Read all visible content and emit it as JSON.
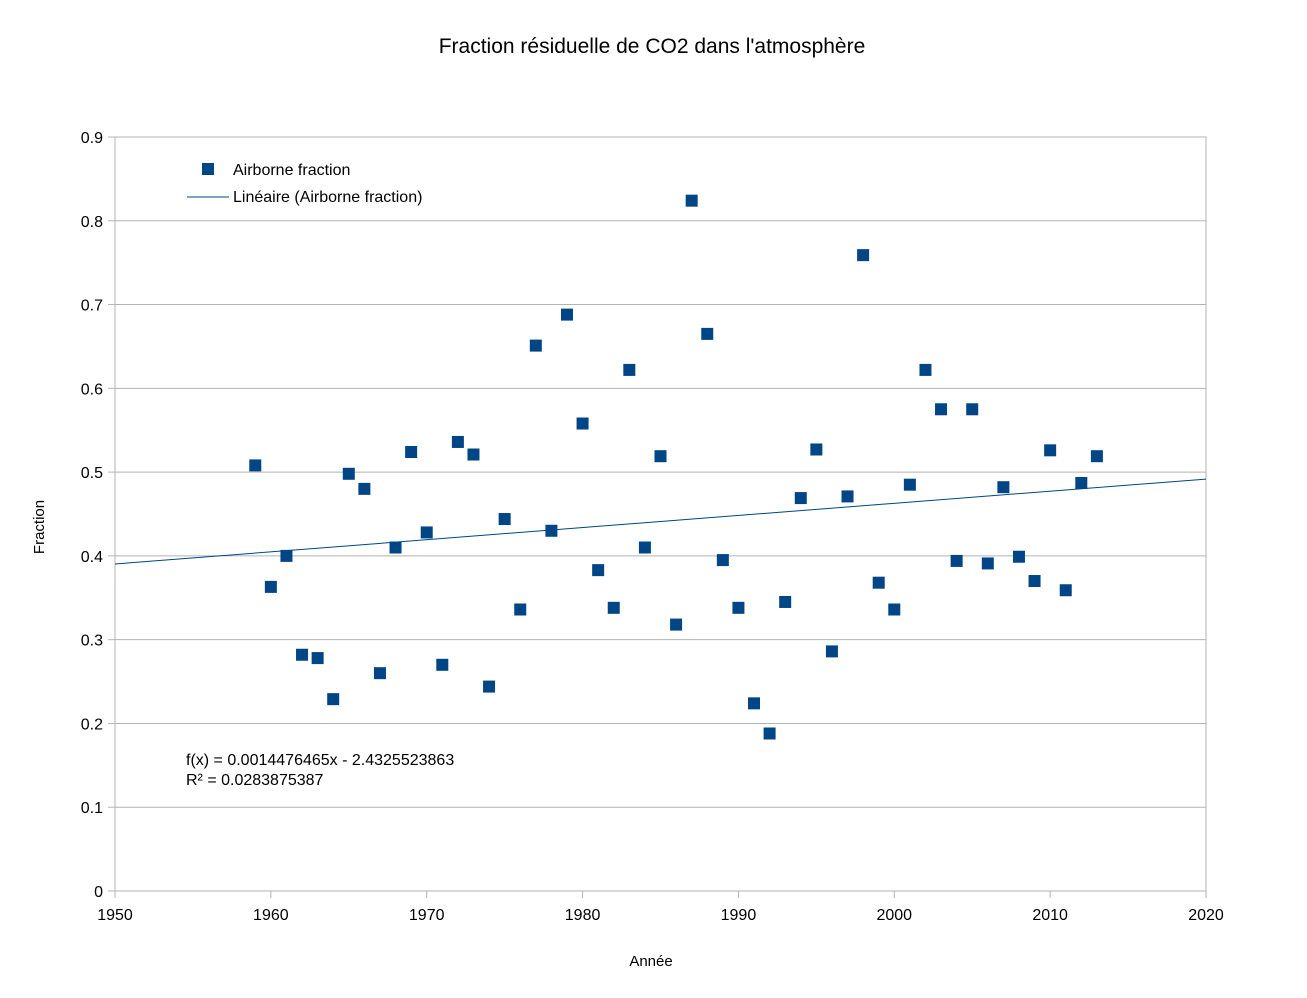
{
  "chart_data": {
    "type": "scatter",
    "title": "Fraction résiduelle de CO2 dans l'atmosphère",
    "xlabel": "Année",
    "ylabel": "Fraction",
    "xlim": [
      1950,
      2020
    ],
    "ylim": [
      0,
      0.9
    ],
    "xticks": [
      "1950",
      "1960",
      "1970",
      "1980",
      "1990",
      "2000",
      "2010",
      "2020"
    ],
    "yticks": [
      "0",
      "0.1",
      "0.2",
      "0.3",
      "0.4",
      "0.5",
      "0.6",
      "0.7",
      "0.8",
      "0.9"
    ],
    "grid": "horizontal",
    "legend_position": "top-left",
    "series": [
      {
        "name": "Airborne fraction",
        "marker": "square",
        "color": "#004586",
        "x": [
          1959,
          1960,
          1961,
          1962,
          1963,
          1964,
          1965,
          1966,
          1967,
          1968,
          1969,
          1970,
          1971,
          1972,
          1973,
          1974,
          1975,
          1976,
          1977,
          1978,
          1979,
          1980,
          1981,
          1982,
          1983,
          1984,
          1985,
          1986,
          1987,
          1988,
          1989,
          1990,
          1991,
          1992,
          1993,
          1994,
          1995,
          1996,
          1997,
          1998,
          1999,
          2000,
          2001,
          2002,
          2003,
          2004,
          2005,
          2006,
          2007,
          2008,
          2009,
          2010,
          2011,
          2012,
          2013
        ],
        "y": [
          0.508,
          0.363,
          0.4,
          0.282,
          0.278,
          0.229,
          0.498,
          0.48,
          0.26,
          0.41,
          0.524,
          0.428,
          0.27,
          0.536,
          0.521,
          0.244,
          0.444,
          0.336,
          0.651,
          0.43,
          0.688,
          0.558,
          0.383,
          0.338,
          0.622,
          0.41,
          0.519,
          0.318,
          0.824,
          0.665,
          0.395,
          0.338,
          0.224,
          0.188,
          0.345,
          0.469,
          0.527,
          0.286,
          0.471,
          0.759,
          0.368,
          0.336,
          0.485,
          0.622,
          0.575,
          0.394,
          0.575,
          0.391,
          0.482,
          0.399,
          0.37,
          0.526,
          0.359,
          0.487,
          0.519
        ]
      },
      {
        "name": "Linéaire (Airborne fraction)",
        "type": "line",
        "color": "#004586",
        "slope": 0.0014476465,
        "intercept": -2.4325523863
      }
    ],
    "annotations": [
      "f(x) = 0.0014476465x - 2.4325523863",
      "R² = 0.0283875387"
    ]
  }
}
